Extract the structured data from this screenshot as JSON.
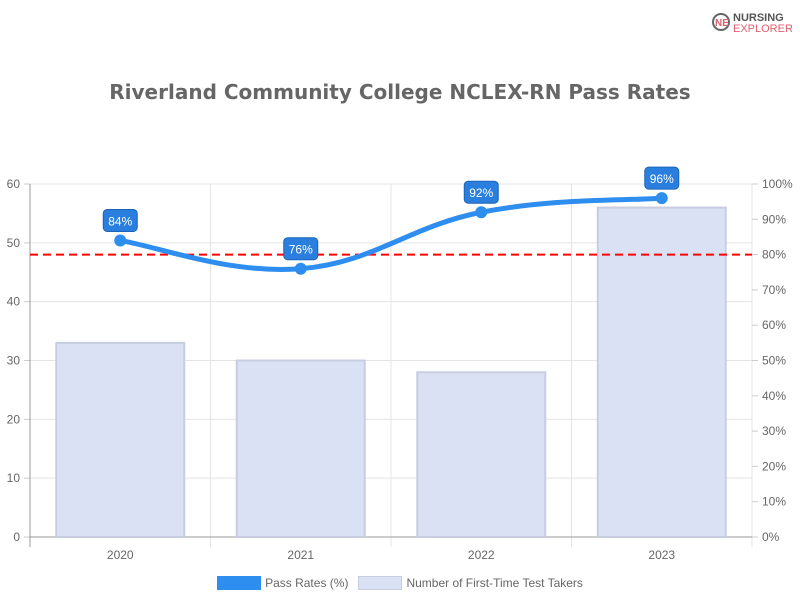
{
  "logo": {
    "line1": "NURSING",
    "line2": "EXPLORER"
  },
  "chart_data": {
    "type": "bar+line",
    "title": "Riverland Community College NCLEX-RN Pass Rates",
    "categories": [
      "2020",
      "2021",
      "2022",
      "2023"
    ],
    "series": [
      {
        "name": "Pass Rates (%)",
        "type": "line",
        "axis": "right",
        "values": [
          84,
          76,
          92,
          96
        ],
        "labels": [
          "84%",
          "76%",
          "92%",
          "96%"
        ],
        "color": "#2e8ef0"
      },
      {
        "name": "Number of First-Time Test Takers",
        "type": "bar",
        "axis": "left",
        "values": [
          33,
          30,
          28,
          56
        ],
        "color": "#dae1f5"
      }
    ],
    "reference_line": {
      "value": 80,
      "axis": "right",
      "color": "#ff0000",
      "style": "dashed"
    },
    "left_axis": {
      "ylim": [
        0,
        60
      ],
      "ticks": [
        "0",
        "10",
        "20",
        "30",
        "40",
        "50",
        "60"
      ]
    },
    "right_axis": {
      "ylim": [
        0,
        100
      ],
      "ticks": [
        "0%",
        "10%",
        "20%",
        "30%",
        "40%",
        "50%",
        "60%",
        "70%",
        "80%",
        "90%",
        "100%"
      ]
    },
    "grid": true,
    "legend": "bottom"
  }
}
